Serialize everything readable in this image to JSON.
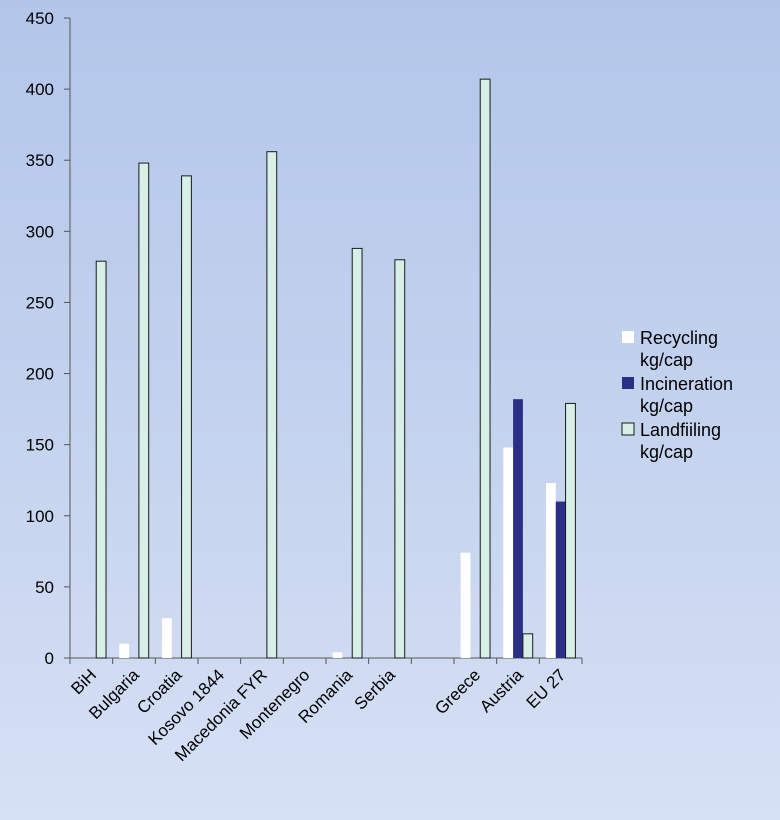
{
  "chart_data": {
    "type": "bar",
    "title": "",
    "xlabel": "",
    "ylabel": "",
    "ylim": [
      0,
      450
    ],
    "yticks": [
      0,
      50,
      100,
      150,
      200,
      250,
      300,
      350,
      400,
      450
    ],
    "grid": false,
    "legend_position": "right",
    "categories": [
      "BiH",
      "Bulgaria",
      "Croatia",
      "Kosovo 1844",
      "Macedonia FYR",
      "Montenegro",
      "Romania",
      "Serbia",
      "",
      "Greece",
      "Austria",
      "EU 27"
    ],
    "series": [
      {
        "name": "Recycling kg/cap",
        "legend_lines": [
          "Recycling",
          "kg/cap"
        ],
        "color": "#ffffff",
        "stroke": "#ffffff",
        "values": [
          0,
          10,
          28,
          0,
          0,
          0,
          4,
          0,
          0,
          74,
          148,
          123
        ]
      },
      {
        "name": "Incineration kg/cap",
        "legend_lines": [
          "Incineration",
          "kg/cap"
        ],
        "color": "#2b2f86",
        "stroke": "#2b2f86",
        "values": [
          0,
          0,
          0,
          0,
          0,
          0,
          0,
          0,
          0,
          0,
          182,
          110
        ]
      },
      {
        "name": "Landfiiling kg/cap",
        "legend_lines": [
          "Landfiiling",
          "kg/cap"
        ],
        "color": "#d8efe8",
        "stroke": "#1a1a1a",
        "values": [
          279,
          348,
          339,
          0,
          356,
          0,
          288,
          280,
          0,
          407,
          17,
          179
        ]
      }
    ]
  }
}
